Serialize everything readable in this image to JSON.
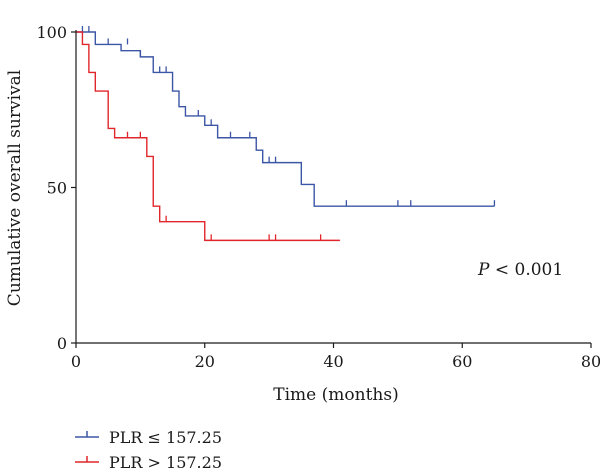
{
  "chart_data": {
    "type": "line",
    "subtype": "kaplan-meier",
    "xlabel": "Time (months)",
    "ylabel": "Cumulative overall survival",
    "xlim": [
      0,
      80
    ],
    "ylim": [
      0,
      100
    ],
    "xticks": [
      0,
      20,
      40,
      60,
      80
    ],
    "yticks": [
      0,
      50,
      100
    ],
    "grid": false,
    "legend_position": "bottom-left",
    "annotation": {
      "prefix": "P",
      "text": " < 0.001"
    },
    "series": [
      {
        "name": "PLR ≤ 157.25",
        "color": "#3c56a6",
        "steps": [
          [
            0,
            100
          ],
          [
            3,
            100
          ],
          [
            3,
            96
          ],
          [
            7,
            96
          ],
          [
            7,
            94
          ],
          [
            10,
            94
          ],
          [
            10,
            92
          ],
          [
            12,
            92
          ],
          [
            12,
            87
          ],
          [
            15,
            87
          ],
          [
            15,
            81
          ],
          [
            16,
            81
          ],
          [
            16,
            76
          ],
          [
            17,
            76
          ],
          [
            17,
            73
          ],
          [
            20,
            73
          ],
          [
            20,
            70
          ],
          [
            22,
            70
          ],
          [
            22,
            66
          ],
          [
            28,
            66
          ],
          [
            28,
            62
          ],
          [
            29,
            62
          ],
          [
            29,
            58
          ],
          [
            35,
            58
          ],
          [
            35,
            51
          ],
          [
            37,
            51
          ],
          [
            37,
            44
          ],
          [
            65,
            44
          ]
        ],
        "censors": [
          [
            1,
            100
          ],
          [
            2,
            100
          ],
          [
            5,
            96
          ],
          [
            8,
            96
          ],
          [
            10,
            92
          ],
          [
            13,
            87
          ],
          [
            14,
            87
          ],
          [
            19,
            73
          ],
          [
            21,
            70
          ],
          [
            24,
            66
          ],
          [
            27,
            66
          ],
          [
            30,
            58
          ],
          [
            31,
            58
          ],
          [
            42,
            44
          ],
          [
            50,
            44
          ],
          [
            52,
            44
          ],
          [
            65,
            44
          ]
        ]
      },
      {
        "name": "PLR > 157.25",
        "color": "#e0262b",
        "steps": [
          [
            0,
            100
          ],
          [
            1,
            100
          ],
          [
            1,
            96
          ],
          [
            2,
            96
          ],
          [
            2,
            87
          ],
          [
            3,
            87
          ],
          [
            3,
            81
          ],
          [
            5,
            81
          ],
          [
            5,
            69
          ],
          [
            6,
            69
          ],
          [
            6,
            66
          ],
          [
            11,
            66
          ],
          [
            11,
            60
          ],
          [
            12,
            60
          ],
          [
            12,
            44
          ],
          [
            13,
            44
          ],
          [
            13,
            39
          ],
          [
            20,
            39
          ],
          [
            20,
            33
          ],
          [
            41,
            33
          ]
        ],
        "censors": [
          [
            8,
            66
          ],
          [
            10,
            66
          ],
          [
            14,
            39
          ],
          [
            21,
            33
          ],
          [
            30,
            33
          ],
          [
            31,
            33
          ],
          [
            38,
            33
          ]
        ]
      }
    ]
  }
}
